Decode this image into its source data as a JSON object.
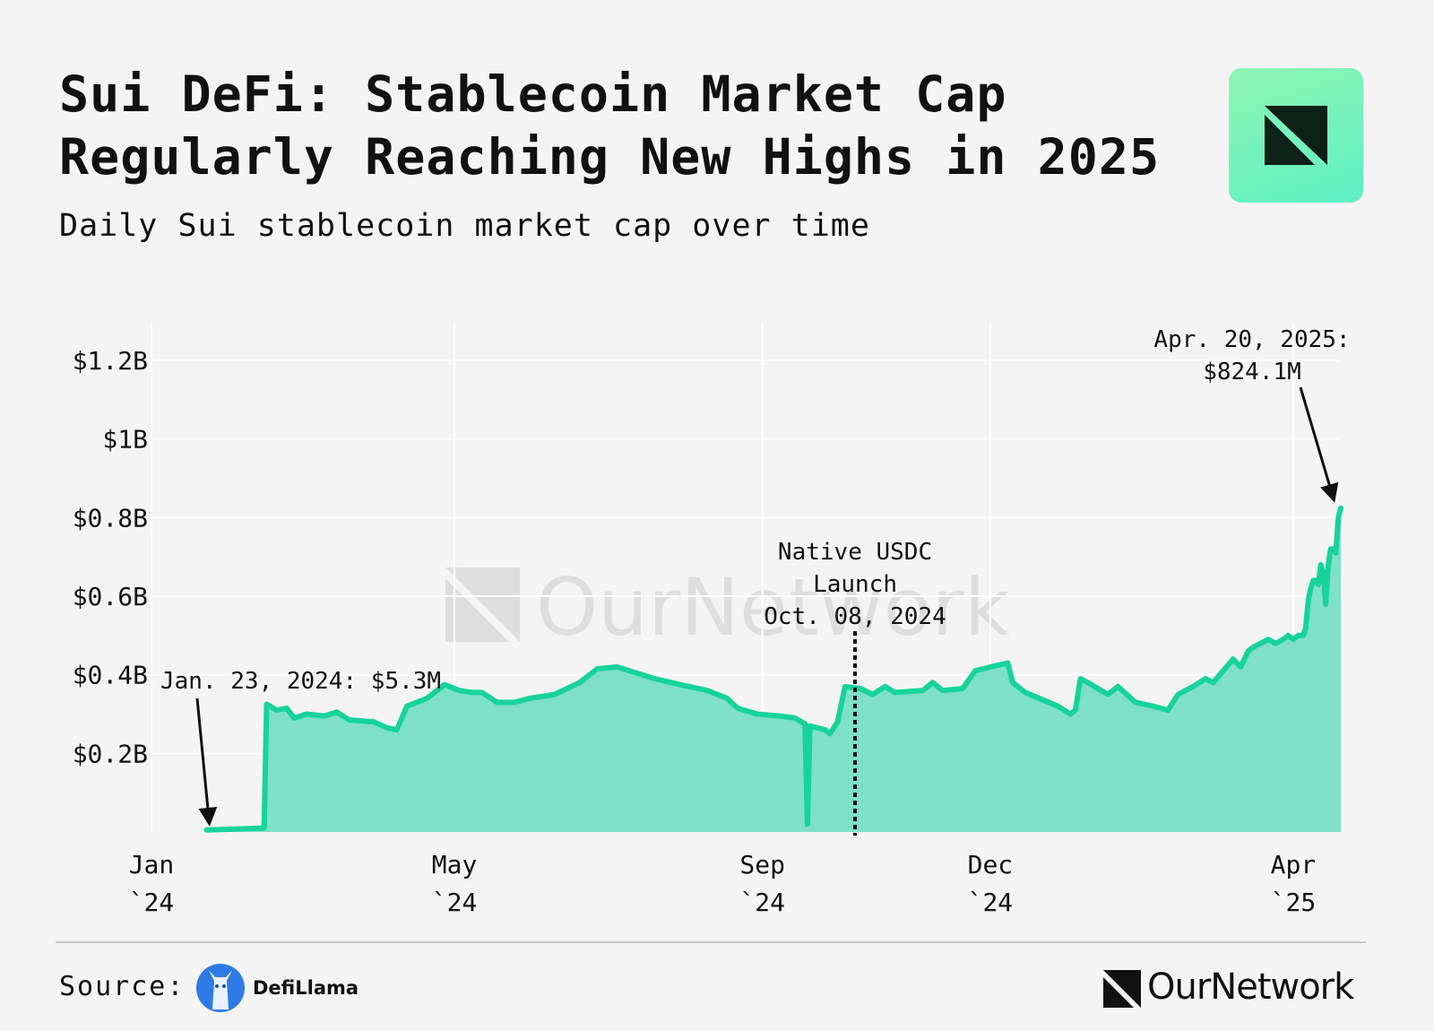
{
  "header": {
    "title": "Sui DeFi: Stablecoin Market Cap Regularly Reaching New Highs in 2025",
    "subtitle": "Daily Sui stablecoin market cap over time"
  },
  "watermark": "OurNetwork",
  "footer": {
    "source_label": "Source:",
    "source_name": "DefiLlama",
    "brand": "OurNetwork"
  },
  "colors": {
    "line": "#17d39a",
    "area": "#7de0c7",
    "grid": "#ffffff",
    "background": "#f4f4f4",
    "badge_gradient_start": "#8ff5b4",
    "badge_gradient_end": "#5ef0c4",
    "badge_mark": "#0e2118"
  },
  "icons": {
    "badge": "ournetwork-mark-icon",
    "defillama": "llama-icon",
    "brand": "ournetwork-mark-icon"
  },
  "chart_data": {
    "type": "area",
    "title": "Sui DeFi: Stablecoin Market Cap Regularly Reaching New Highs in 2025",
    "subtitle": "Daily Sui stablecoin market cap over time",
    "xlabel": "",
    "ylabel": "",
    "x_tick_labels": [
      {
        "date": "2024-01-01",
        "line1": "Jan",
        "line2": "`24"
      },
      {
        "date": "2024-05-01",
        "line1": "May",
        "line2": "`24"
      },
      {
        "date": "2024-09-01",
        "line1": "Sep",
        "line2": "`24"
      },
      {
        "date": "2024-12-01",
        "line1": "Dec",
        "line2": "`24"
      },
      {
        "date": "2025-04-01",
        "line1": "Apr",
        "line2": "`25"
      }
    ],
    "y_ticks": [
      {
        "value": 0.2,
        "label": "$0.2B"
      },
      {
        "value": 0.4,
        "label": "$0.4B"
      },
      {
        "value": 0.6,
        "label": "$0.6B"
      },
      {
        "value": 0.8,
        "label": "$0.8B"
      },
      {
        "value": 1.0,
        "label": "$1B"
      },
      {
        "value": 1.2,
        "label": "$1.2B"
      }
    ],
    "ylim": [
      0,
      1.3
    ],
    "xlim": [
      "2024-01-01",
      "2025-04-20"
    ],
    "grid": true,
    "units": "USD billions",
    "series": [
      {
        "points": [
          [
            "2024-01-23",
            0.005
          ],
          [
            "2024-02-15",
            0.01
          ],
          [
            "2024-02-16",
            0.325
          ],
          [
            "2024-02-20",
            0.31
          ],
          [
            "2024-02-24",
            0.315
          ],
          [
            "2024-02-27",
            0.29
          ],
          [
            "2024-03-03",
            0.3
          ],
          [
            "2024-03-10",
            0.295
          ],
          [
            "2024-03-15",
            0.305
          ],
          [
            "2024-03-20",
            0.285
          ],
          [
            "2024-03-30",
            0.28
          ],
          [
            "2024-04-04",
            0.265
          ],
          [
            "2024-04-08",
            0.26
          ],
          [
            "2024-04-12",
            0.32
          ],
          [
            "2024-04-20",
            0.34
          ],
          [
            "2024-04-27",
            0.375
          ],
          [
            "2024-05-03",
            0.36
          ],
          [
            "2024-05-08",
            0.355
          ],
          [
            "2024-05-12",
            0.355
          ],
          [
            "2024-05-18",
            0.33
          ],
          [
            "2024-05-25",
            0.33
          ],
          [
            "2024-05-31",
            0.34
          ],
          [
            "2024-06-10",
            0.35
          ],
          [
            "2024-06-20",
            0.38
          ],
          [
            "2024-06-27",
            0.415
          ],
          [
            "2024-07-05",
            0.42
          ],
          [
            "2024-07-10",
            0.41
          ],
          [
            "2024-07-20",
            0.39
          ],
          [
            "2024-07-30",
            0.375
          ],
          [
            "2024-08-10",
            0.36
          ],
          [
            "2024-08-18",
            0.34
          ],
          [
            "2024-08-22",
            0.315
          ],
          [
            "2024-08-30",
            0.3
          ],
          [
            "2024-09-08",
            0.295
          ],
          [
            "2024-09-14",
            0.29
          ],
          [
            "2024-09-18",
            0.275
          ],
          [
            "2024-09-19",
            0.02
          ],
          [
            "2024-09-20",
            0.27
          ],
          [
            "2024-09-26",
            0.26
          ],
          [
            "2024-09-28",
            0.25
          ],
          [
            "2024-10-01",
            0.28
          ],
          [
            "2024-10-04",
            0.37
          ],
          [
            "2024-10-10",
            0.365
          ],
          [
            "2024-10-15",
            0.35
          ],
          [
            "2024-10-20",
            0.37
          ],
          [
            "2024-10-24",
            0.355
          ],
          [
            "2024-11-04",
            0.36
          ],
          [
            "2024-11-08",
            0.38
          ],
          [
            "2024-11-12",
            0.36
          ],
          [
            "2024-11-20",
            0.365
          ],
          [
            "2024-11-25",
            0.41
          ],
          [
            "2024-12-01",
            0.42
          ],
          [
            "2024-12-08",
            0.43
          ],
          [
            "2024-12-10",
            0.38
          ],
          [
            "2024-12-15",
            0.355
          ],
          [
            "2024-12-28",
            0.32
          ],
          [
            "2025-01-02",
            0.3
          ],
          [
            "2025-01-04",
            0.31
          ],
          [
            "2025-01-06",
            0.39
          ],
          [
            "2025-01-09",
            0.38
          ],
          [
            "2025-01-13",
            0.365
          ],
          [
            "2025-01-17",
            0.35
          ],
          [
            "2025-01-21",
            0.37
          ],
          [
            "2025-01-28",
            0.33
          ],
          [
            "2025-02-04",
            0.32
          ],
          [
            "2025-02-10",
            0.31
          ],
          [
            "2025-02-14",
            0.35
          ],
          [
            "2025-02-20",
            0.37
          ],
          [
            "2025-02-25",
            0.39
          ],
          [
            "2025-02-28",
            0.38
          ],
          [
            "2025-03-04",
            0.41
          ],
          [
            "2025-03-08",
            0.44
          ],
          [
            "2025-03-11",
            0.42
          ],
          [
            "2025-03-14",
            0.46
          ],
          [
            "2025-03-16",
            0.47
          ],
          [
            "2025-03-19",
            0.48
          ],
          [
            "2025-03-22",
            0.49
          ],
          [
            "2025-03-25",
            0.48
          ],
          [
            "2025-03-28",
            0.49
          ],
          [
            "2025-03-30",
            0.5
          ],
          [
            "2025-04-01",
            0.49
          ],
          [
            "2025-04-03",
            0.5
          ],
          [
            "2025-04-05",
            0.5
          ],
          [
            "2025-04-06",
            0.52
          ],
          [
            "2025-04-07",
            0.59
          ],
          [
            "2025-04-08",
            0.62
          ],
          [
            "2025-04-09",
            0.64
          ],
          [
            "2025-04-10",
            0.64
          ],
          [
            "2025-04-11",
            0.63
          ],
          [
            "2025-04-12",
            0.68
          ],
          [
            "2025-04-13",
            0.66
          ],
          [
            "2025-04-14",
            0.58
          ],
          [
            "2025-04-15",
            0.68
          ],
          [
            "2025-04-16",
            0.72
          ],
          [
            "2025-04-17",
            0.72
          ],
          [
            "2025-04-18",
            0.71
          ],
          [
            "2025-04-19",
            0.8
          ],
          [
            "2025-04-20",
            0.824
          ]
        ]
      }
    ],
    "annotations": [
      {
        "id": "start",
        "date": "2024-01-23",
        "value": 0.0053,
        "text": "Jan. 23, 2024: $5.3M"
      },
      {
        "id": "usdc",
        "date": "2024-10-08",
        "lines": [
          "Native USDC",
          "Launch",
          "Oct. 08, 2024"
        ]
      },
      {
        "id": "end",
        "date": "2025-04-20",
        "value": 0.8241,
        "lines": [
          "Apr. 20, 2025:",
          "$824.1M"
        ]
      }
    ]
  }
}
